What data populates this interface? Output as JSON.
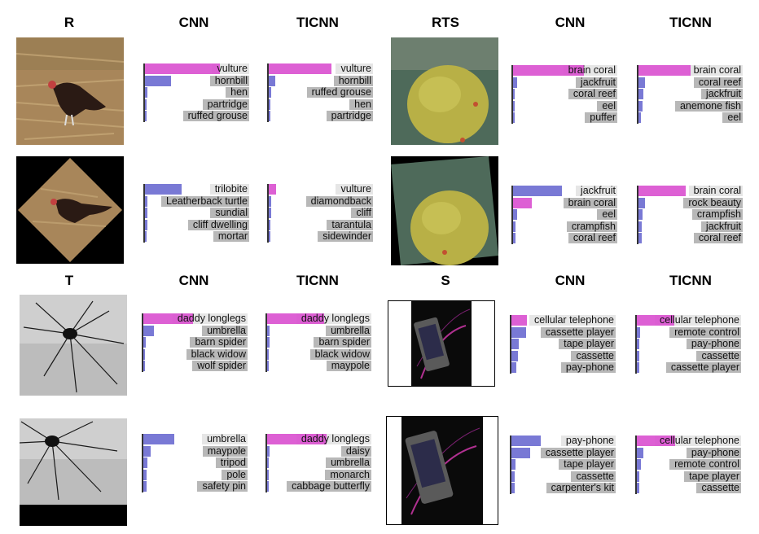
{
  "headers": {
    "r": "R",
    "rts": "RTS",
    "t": "T",
    "s": "S",
    "cnn": "CNN",
    "ticnn": "TICNN"
  },
  "colors": {
    "correct": "#d94fcf",
    "wrong": "#6a6ad0",
    "label_top": "#e6e6e6",
    "label": "#b8b8b8"
  },
  "panels": [
    {
      "id": "vulture-orig-cnn",
      "labels": [
        "vulture",
        "hornbill",
        "hen",
        "partridge",
        "ruffed grouse"
      ],
      "probs": [
        0.72,
        0.25,
        0.02,
        0.01,
        0.01
      ],
      "correct_rank": 0
    },
    {
      "id": "vulture-orig-ticnn",
      "labels": [
        "vulture",
        "hornbill",
        "ruffed grouse",
        "hen",
        "partridge"
      ],
      "probs": [
        0.6,
        0.06,
        0.02,
        0.01,
        0.01
      ],
      "correct_rank": 0
    },
    {
      "id": "vulture-rot-cnn",
      "labels": [
        "trilobite",
        "Leatherback turtle",
        "sundial",
        "cliff dwelling",
        "mortar"
      ],
      "probs": [
        0.35,
        0.02,
        0.02,
        0.02,
        0.01
      ],
      "correct_rank": -1
    },
    {
      "id": "vulture-rot-ticnn",
      "labels": [
        "vulture",
        "diamondback",
        "cliff",
        "tarantula",
        "sidewinder"
      ],
      "probs": [
        0.07,
        0.02,
        0.02,
        0.01,
        0.01
      ],
      "correct_rank": 0
    },
    {
      "id": "coral-orig-cnn",
      "labels": [
        "brain coral",
        "jackfruit",
        "coral reef",
        "eel",
        "puffer"
      ],
      "probs": [
        0.68,
        0.04,
        0.01,
        0.01,
        0.01
      ],
      "correct_rank": 0
    },
    {
      "id": "coral-orig-ticnn",
      "labels": [
        "brain coral",
        "coral reef",
        "jackfruit",
        "anemone fish",
        "eel"
      ],
      "probs": [
        0.5,
        0.06,
        0.05,
        0.04,
        0.02
      ],
      "correct_rank": 0
    },
    {
      "id": "coral-rot-cnn",
      "labels": [
        "jackfruit",
        "brain coral",
        "eel",
        "crampfish",
        "coral reef"
      ],
      "probs": [
        0.47,
        0.18,
        0.04,
        0.02,
        0.02
      ],
      "correct_rank": 1
    },
    {
      "id": "coral-rot-ticnn",
      "labels": [
        "brain coral",
        "rock beauty",
        "crampfish",
        "jackfruit",
        "coral reef"
      ],
      "probs": [
        0.45,
        0.06,
        0.04,
        0.03,
        0.03
      ],
      "correct_rank": 0
    },
    {
      "id": "spider-orig-cnn",
      "labels": [
        "daddy longlegs",
        "umbrella",
        "barn spider",
        "black widow",
        "wolf spider"
      ],
      "probs": [
        0.48,
        0.1,
        0.02,
        0.01,
        0.01
      ],
      "correct_rank": 0
    },
    {
      "id": "spider-orig-ticnn",
      "labels": [
        "daddy longlegs",
        "umbrella",
        "barn spider",
        "black widow",
        "maypole"
      ],
      "probs": [
        0.55,
        0.02,
        0.02,
        0.01,
        0.01
      ],
      "correct_rank": 0
    },
    {
      "id": "spider-trans-cnn",
      "labels": [
        "umbrella",
        "maypole",
        "tripod",
        "pole",
        "safety pin"
      ],
      "probs": [
        0.3,
        0.07,
        0.04,
        0.03,
        0.03
      ],
      "correct_rank": -1
    },
    {
      "id": "spider-trans-ticnn",
      "labels": [
        "daddy longlegs",
        "daisy",
        "umbrella",
        "monarch",
        "cabbage butterfly"
      ],
      "probs": [
        0.57,
        0.02,
        0.01,
        0.01,
        0.01
      ],
      "correct_rank": 0
    },
    {
      "id": "phone-orig-cnn",
      "labels": [
        "cellular telephone",
        "cassette player",
        "tape player",
        "cassette",
        "pay-phone"
      ],
      "probs": [
        0.15,
        0.14,
        0.07,
        0.06,
        0.05
      ],
      "correct_rank": 0
    },
    {
      "id": "phone-orig-ticnn",
      "labels": [
        "cellular telephone",
        "remote control",
        "pay-phone",
        "cassette",
        "cassette player"
      ],
      "probs": [
        0.36,
        0.03,
        0.02,
        0.02,
        0.02
      ],
      "correct_rank": 0
    },
    {
      "id": "phone-scale-cnn",
      "labels": [
        "pay-phone",
        "cassette player",
        "tape player",
        "cassette",
        "carpenter's kit"
      ],
      "probs": [
        0.28,
        0.18,
        0.04,
        0.03,
        0.03
      ],
      "correct_rank": -1
    },
    {
      "id": "phone-scale-ticnn",
      "labels": [
        "cellular telephone",
        "pay-phone",
        "remote control",
        "tape player",
        "cassette"
      ],
      "probs": [
        0.37,
        0.06,
        0.04,
        0.02,
        0.02
      ],
      "correct_rank": 0
    }
  ]
}
